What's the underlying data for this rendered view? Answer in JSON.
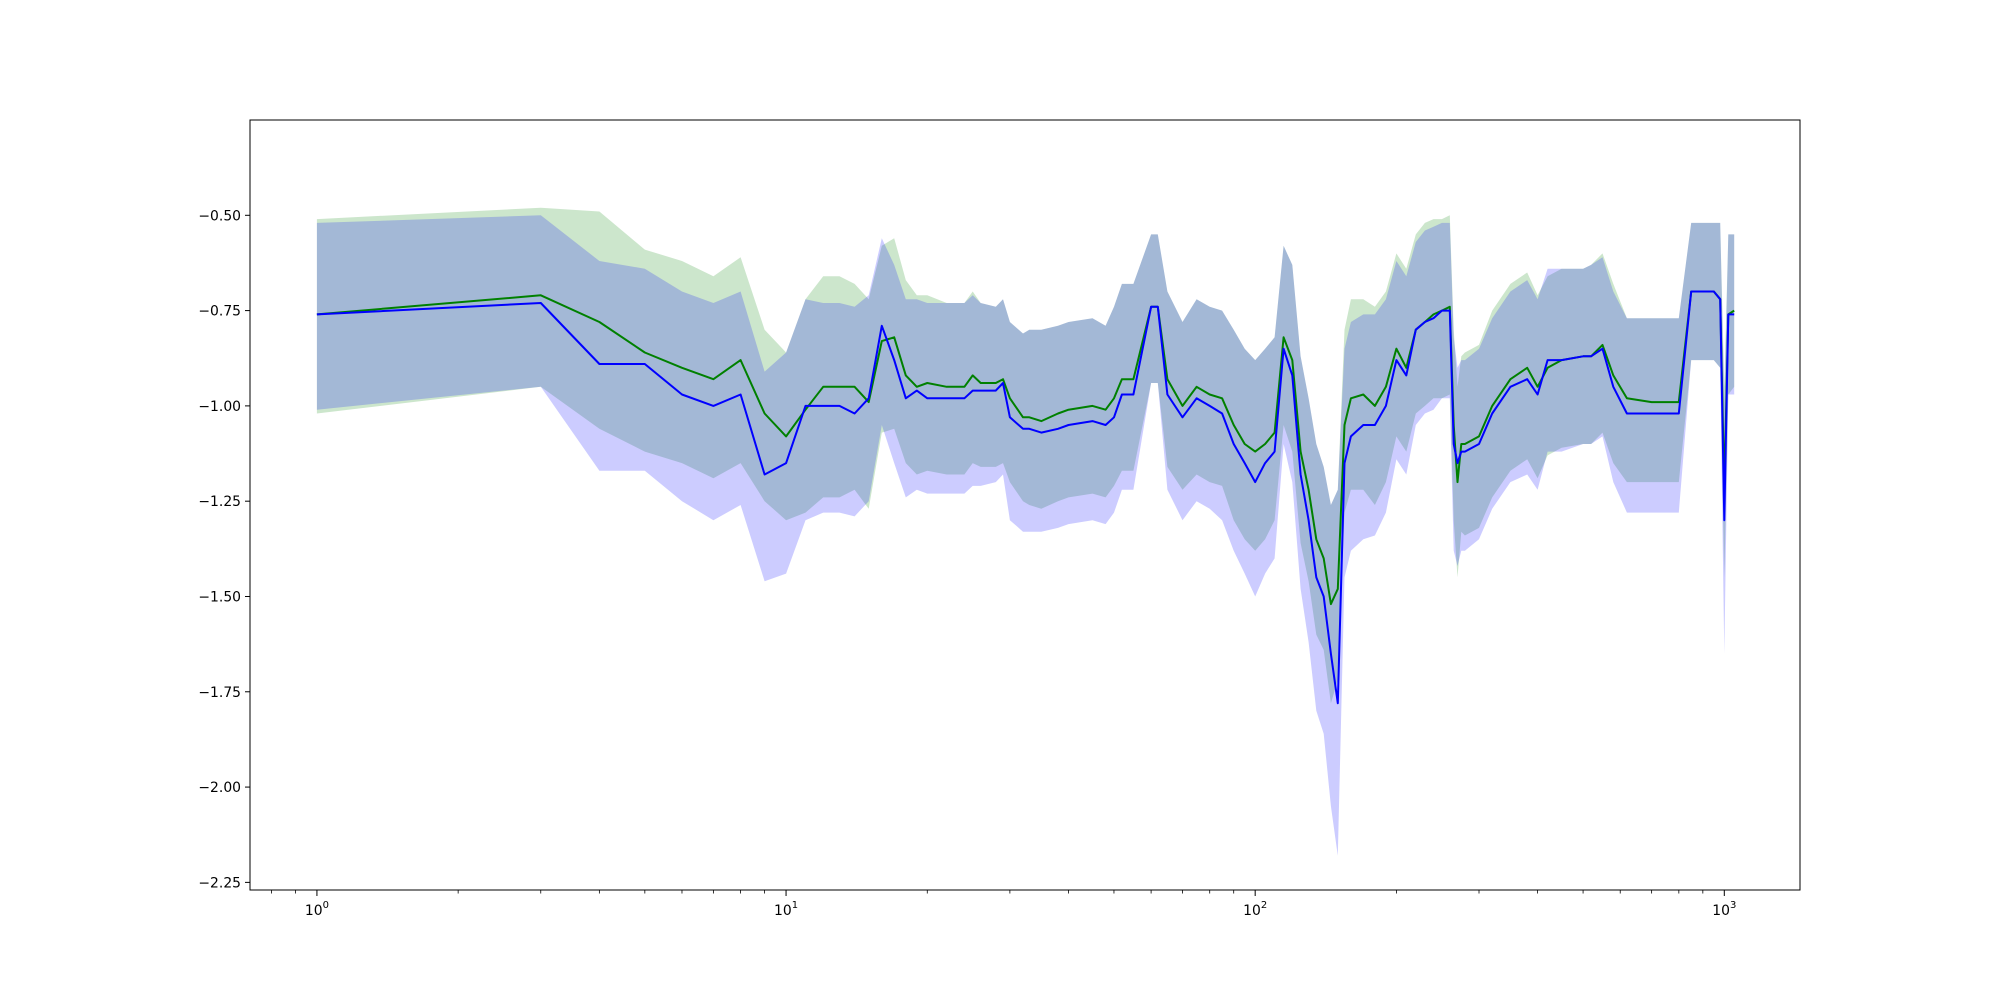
{
  "chart_data": {
    "type": "line",
    "title": "",
    "xlabel": "",
    "ylabel": "",
    "x_scale": "log",
    "xlim": [
      0.72,
      1450
    ],
    "ylim": [
      -2.27,
      -0.25
    ],
    "grid": false,
    "x_ticks": [
      {
        "value": 1,
        "base": "10",
        "exp": "0"
      },
      {
        "value": 10,
        "base": "10",
        "exp": "1"
      },
      {
        "value": 100,
        "base": "10",
        "exp": "2"
      },
      {
        "value": 1000,
        "base": "10",
        "exp": "3"
      }
    ],
    "y_ticks": [
      {
        "value": -0.5,
        "label": "−0.50"
      },
      {
        "value": -0.75,
        "label": "−0.75"
      },
      {
        "value": -1.0,
        "label": "−1.00"
      },
      {
        "value": -1.25,
        "label": "−1.25"
      },
      {
        "value": -1.5,
        "label": "−1.50"
      },
      {
        "value": -1.75,
        "label": "−1.75"
      },
      {
        "value": -2.0,
        "label": "−2.00"
      },
      {
        "value": -2.25,
        "label": "−2.25"
      }
    ],
    "colors": {
      "green": "#008000",
      "blue": "#0000ff",
      "green_band": "rgba(0,128,0,0.2)",
      "blue_band": "rgba(0,0,255,0.2)"
    },
    "series": [
      {
        "color": "#008000",
        "x": [
          1,
          3,
          4,
          5,
          6,
          7,
          8,
          9,
          10,
          11,
          12,
          13,
          14,
          15,
          16,
          17,
          18,
          19,
          20,
          22,
          24,
          25,
          26,
          28,
          29,
          30,
          32,
          33,
          35,
          38,
          40,
          45,
          48,
          50,
          52,
          55,
          60,
          62,
          65,
          70,
          75,
          80,
          85,
          90,
          95,
          100,
          105,
          110,
          115,
          120,
          125,
          130,
          135,
          140,
          145,
          150,
          155,
          160,
          170,
          180,
          190,
          200,
          210,
          220,
          230,
          240,
          250,
          260,
          265,
          270,
          275,
          280,
          300,
          320,
          350,
          380,
          400,
          420,
          450,
          500,
          520,
          550,
          580,
          620,
          700,
          800,
          850,
          900,
          950,
          980,
          1000,
          1020,
          1050
        ],
        "y": [
          -0.76,
          -0.71,
          -0.78,
          -0.86,
          -0.9,
          -0.93,
          -0.88,
          -1.02,
          -1.08,
          -1.01,
          -0.95,
          -0.95,
          -0.95,
          -0.99,
          -0.83,
          -0.82,
          -0.92,
          -0.95,
          -0.94,
          -0.95,
          -0.95,
          -0.92,
          -0.94,
          -0.94,
          -0.93,
          -0.98,
          -1.03,
          -1.03,
          -1.04,
          -1.02,
          -1.01,
          -1.0,
          -1.01,
          -0.98,
          -0.93,
          -0.93,
          -0.74,
          -0.74,
          -0.93,
          -1.0,
          -0.95,
          -0.97,
          -0.98,
          -1.05,
          -1.1,
          -1.12,
          -1.1,
          -1.07,
          -0.82,
          -0.88,
          -1.12,
          -1.22,
          -1.35,
          -1.4,
          -1.52,
          -1.48,
          -1.05,
          -0.98,
          -0.97,
          -1.0,
          -0.95,
          -0.85,
          -0.9,
          -0.8,
          -0.78,
          -0.76,
          -0.75,
          -0.74,
          -1.05,
          -1.2,
          -1.1,
          -1.1,
          -1.08,
          -1.0,
          -0.93,
          -0.9,
          -0.95,
          -0.9,
          -0.88,
          -0.87,
          -0.87,
          -0.84,
          -0.92,
          -0.98,
          -0.99,
          -0.99,
          -0.7,
          -0.7,
          -0.7,
          -0.72,
          -1.22,
          -0.76,
          -0.75
        ],
        "upper": [
          -0.51,
          -0.48,
          -0.49,
          -0.59,
          -0.62,
          -0.66,
          -0.61,
          -0.8,
          -0.86,
          -0.72,
          -0.66,
          -0.66,
          -0.68,
          -0.72,
          -0.58,
          -0.56,
          -0.67,
          -0.71,
          -0.71,
          -0.73,
          -0.73,
          -0.7,
          -0.73,
          -0.74,
          -0.72,
          -0.78,
          -0.81,
          -0.8,
          -0.8,
          -0.79,
          -0.78,
          -0.77,
          -0.79,
          -0.74,
          -0.68,
          -0.68,
          -0.55,
          -0.55,
          -0.7,
          -0.78,
          -0.72,
          -0.74,
          -0.75,
          -0.8,
          -0.85,
          -0.88,
          -0.85,
          -0.82,
          -0.58,
          -0.63,
          -0.87,
          -0.98,
          -1.1,
          -1.16,
          -1.26,
          -1.22,
          -0.8,
          -0.72,
          -0.72,
          -0.74,
          -0.7,
          -0.6,
          -0.64,
          -0.55,
          -0.52,
          -0.51,
          -0.51,
          -0.5,
          -0.8,
          -0.95,
          -0.87,
          -0.86,
          -0.84,
          -0.75,
          -0.68,
          -0.65,
          -0.71,
          -0.66,
          -0.64,
          -0.64,
          -0.63,
          -0.6,
          -0.68,
          -0.77,
          -0.77,
          -0.77,
          -0.52,
          -0.52,
          -0.52,
          -0.52,
          -0.95,
          -0.55,
          -0.55
        ],
        "lower": [
          -1.02,
          -0.95,
          -1.06,
          -1.12,
          -1.15,
          -1.19,
          -1.15,
          -1.25,
          -1.3,
          -1.28,
          -1.24,
          -1.24,
          -1.22,
          -1.27,
          -1.07,
          -1.06,
          -1.15,
          -1.18,
          -1.17,
          -1.18,
          -1.18,
          -1.15,
          -1.16,
          -1.16,
          -1.15,
          -1.2,
          -1.25,
          -1.26,
          -1.27,
          -1.25,
          -1.24,
          -1.23,
          -1.24,
          -1.21,
          -1.17,
          -1.17,
          -0.94,
          -0.94,
          -1.16,
          -1.22,
          -1.18,
          -1.2,
          -1.21,
          -1.3,
          -1.35,
          -1.38,
          -1.35,
          -1.3,
          -1.05,
          -1.12,
          -1.36,
          -1.46,
          -1.6,
          -1.64,
          -1.78,
          -1.72,
          -1.28,
          -1.22,
          -1.22,
          -1.26,
          -1.2,
          -1.08,
          -1.12,
          -1.02,
          -1.0,
          -0.98,
          -0.98,
          -0.97,
          -1.3,
          -1.45,
          -1.33,
          -1.34,
          -1.32,
          -1.24,
          -1.17,
          -1.14,
          -1.19,
          -1.13,
          -1.11,
          -1.1,
          -1.1,
          -1.07,
          -1.15,
          -1.2,
          -1.2,
          -1.2,
          -0.88,
          -0.88,
          -0.88,
          -0.9,
          -1.45,
          -0.97,
          -0.95
        ]
      },
      {
        "color": "#0000ff",
        "x": [
          1,
          3,
          4,
          5,
          6,
          7,
          8,
          9,
          10,
          11,
          12,
          13,
          14,
          15,
          16,
          17,
          18,
          19,
          20,
          22,
          24,
          25,
          26,
          28,
          29,
          30,
          32,
          33,
          35,
          38,
          40,
          45,
          48,
          50,
          52,
          55,
          60,
          62,
          65,
          70,
          75,
          80,
          85,
          90,
          95,
          100,
          105,
          110,
          115,
          120,
          125,
          130,
          135,
          140,
          145,
          150,
          155,
          160,
          170,
          180,
          190,
          200,
          210,
          220,
          230,
          240,
          250,
          260,
          265,
          270,
          275,
          280,
          300,
          320,
          350,
          380,
          400,
          420,
          450,
          500,
          520,
          550,
          580,
          620,
          700,
          800,
          850,
          900,
          950,
          980,
          1000,
          1020,
          1050
        ],
        "y": [
          -0.76,
          -0.73,
          -0.89,
          -0.89,
          -0.97,
          -1.0,
          -0.97,
          -1.18,
          -1.15,
          -1.0,
          -1.0,
          -1.0,
          -1.02,
          -0.98,
          -0.79,
          -0.88,
          -0.98,
          -0.96,
          -0.98,
          -0.98,
          -0.98,
          -0.96,
          -0.96,
          -0.96,
          -0.94,
          -1.03,
          -1.06,
          -1.06,
          -1.07,
          -1.06,
          -1.05,
          -1.04,
          -1.05,
          -1.03,
          -0.97,
          -0.97,
          -0.74,
          -0.74,
          -0.97,
          -1.03,
          -0.98,
          -1.0,
          -1.02,
          -1.1,
          -1.15,
          -1.2,
          -1.15,
          -1.12,
          -0.85,
          -0.92,
          -1.18,
          -1.3,
          -1.45,
          -1.5,
          -1.65,
          -1.78,
          -1.15,
          -1.08,
          -1.05,
          -1.05,
          -1.0,
          -0.88,
          -0.92,
          -0.8,
          -0.78,
          -0.77,
          -0.75,
          -0.75,
          -1.1,
          -1.15,
          -1.12,
          -1.12,
          -1.1,
          -1.02,
          -0.95,
          -0.93,
          -0.97,
          -0.88,
          -0.88,
          -0.87,
          -0.87,
          -0.85,
          -0.95,
          -1.02,
          -1.02,
          -1.02,
          -0.7,
          -0.7,
          -0.7,
          -0.72,
          -1.3,
          -0.76,
          -0.76
        ],
        "upper": [
          -0.52,
          -0.5,
          -0.62,
          -0.64,
          -0.7,
          -0.73,
          -0.7,
          -0.91,
          -0.86,
          -0.72,
          -0.73,
          -0.73,
          -0.74,
          -0.71,
          -0.56,
          -0.63,
          -0.72,
          -0.72,
          -0.73,
          -0.73,
          -0.73,
          -0.71,
          -0.73,
          -0.74,
          -0.72,
          -0.78,
          -0.81,
          -0.8,
          -0.8,
          -0.79,
          -0.78,
          -0.77,
          -0.79,
          -0.74,
          -0.68,
          -0.68,
          -0.55,
          -0.55,
          -0.7,
          -0.78,
          -0.72,
          -0.74,
          -0.75,
          -0.8,
          -0.85,
          -0.88,
          -0.85,
          -0.82,
          -0.58,
          -0.63,
          -0.87,
          -0.98,
          -1.1,
          -1.16,
          -1.26,
          -1.22,
          -0.85,
          -0.78,
          -0.76,
          -0.76,
          -0.72,
          -0.62,
          -0.66,
          -0.57,
          -0.54,
          -0.53,
          -0.52,
          -0.52,
          -0.82,
          -0.9,
          -0.88,
          -0.88,
          -0.85,
          -0.77,
          -0.7,
          -0.67,
          -0.72,
          -0.64,
          -0.64,
          -0.64,
          -0.63,
          -0.61,
          -0.7,
          -0.77,
          -0.77,
          -0.77,
          -0.52,
          -0.52,
          -0.52,
          -0.52,
          -1.0,
          -0.55,
          -0.55
        ],
        "lower": [
          -1.01,
          -0.95,
          -1.17,
          -1.17,
          -1.25,
          -1.3,
          -1.26,
          -1.46,
          -1.44,
          -1.3,
          -1.28,
          -1.28,
          -1.29,
          -1.25,
          -1.05,
          -1.15,
          -1.24,
          -1.22,
          -1.23,
          -1.23,
          -1.23,
          -1.21,
          -1.21,
          -1.2,
          -1.18,
          -1.3,
          -1.33,
          -1.33,
          -1.33,
          -1.32,
          -1.31,
          -1.3,
          -1.31,
          -1.28,
          -1.22,
          -1.22,
          -0.94,
          -0.94,
          -1.22,
          -1.3,
          -1.25,
          -1.27,
          -1.3,
          -1.38,
          -1.44,
          -1.5,
          -1.44,
          -1.4,
          -1.1,
          -1.2,
          -1.48,
          -1.62,
          -1.8,
          -1.86,
          -2.05,
          -2.18,
          -1.45,
          -1.38,
          -1.35,
          -1.34,
          -1.28,
          -1.14,
          -1.18,
          -1.05,
          -1.02,
          -1.01,
          -0.98,
          -0.98,
          -1.38,
          -1.42,
          -1.38,
          -1.38,
          -1.35,
          -1.27,
          -1.2,
          -1.18,
          -1.22,
          -1.12,
          -1.12,
          -1.1,
          -1.1,
          -1.08,
          -1.2,
          -1.28,
          -1.28,
          -1.28,
          -0.88,
          -0.88,
          -0.88,
          -0.9,
          -1.65,
          -0.97,
          -0.97
        ]
      }
    ]
  }
}
